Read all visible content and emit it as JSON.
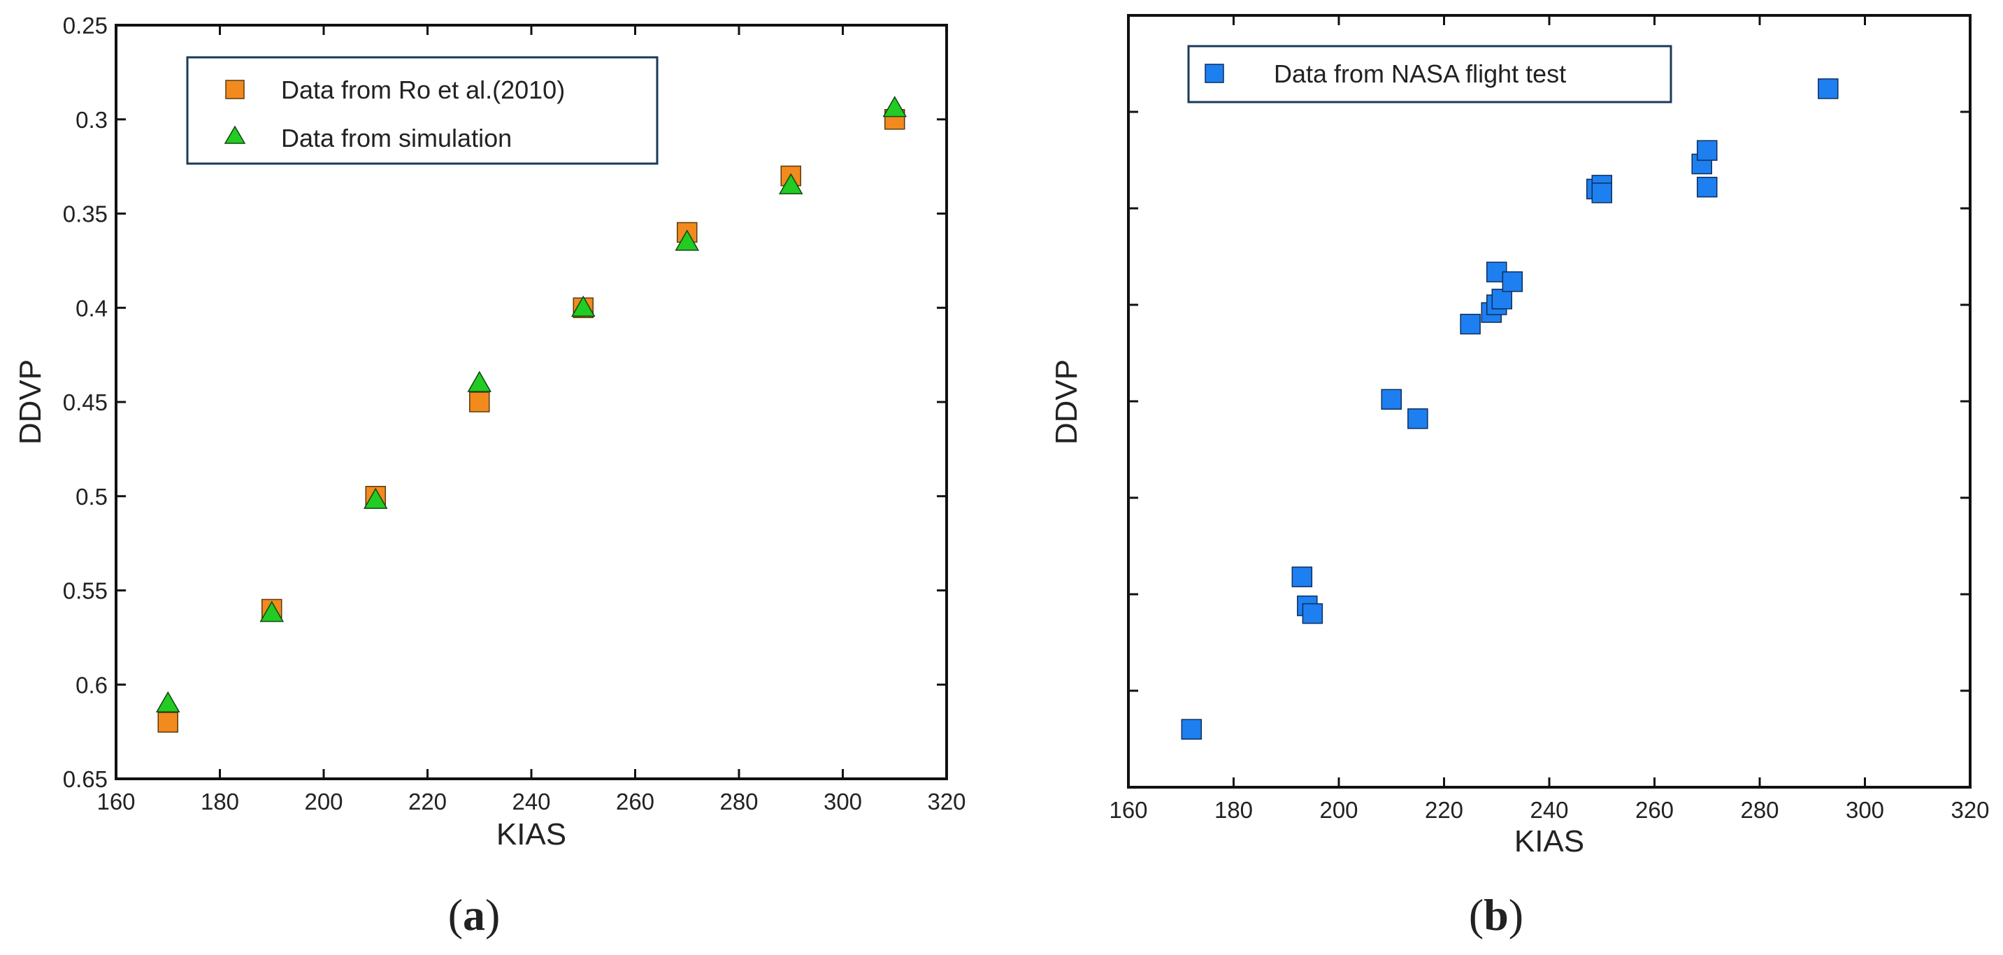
{
  "chart_data": [
    {
      "type": "scatter",
      "panel_label": "(a)",
      "caption_open": "(",
      "caption_letter": "a",
      "caption_close": ")",
      "title": "",
      "xlabel": "KIAS",
      "ylabel": "DDVP",
      "xlim": [
        160,
        320
      ],
      "ylim": [
        0.25,
        0.65
      ],
      "y_inverted": true,
      "x_ticks": [
        160,
        180,
        200,
        220,
        240,
        260,
        280,
        300,
        320
      ],
      "y_ticks": [
        0.25,
        0.3,
        0.35,
        0.4,
        0.45,
        0.5,
        0.55,
        0.6,
        0.65
      ],
      "x_tick_labels": [
        "160",
        "180",
        "200",
        "220",
        "240",
        "260",
        "280",
        "300",
        "320"
      ],
      "y_tick_labels": [
        "0.25",
        "0.3",
        "0.35",
        "0.4",
        "0.45",
        "0.5",
        "0.55",
        "0.6",
        "0.65"
      ],
      "grid": false,
      "legend_position": "top-left",
      "series": [
        {
          "name": "Data from Ro et al.(2010)",
          "marker": "square",
          "color": "#f28a1d",
          "x": [
            170,
            190,
            210,
            230,
            250,
            270,
            290,
            310
          ],
          "y": [
            0.62,
            0.56,
            0.5,
            0.45,
            0.4,
            0.36,
            0.33,
            0.3
          ]
        },
        {
          "name": "Data from simulation",
          "marker": "triangle",
          "color": "#22cc22",
          "x": [
            170,
            190,
            210,
            230,
            250,
            270,
            290,
            310
          ],
          "y": [
            0.61,
            0.562,
            0.502,
            0.44,
            0.4,
            0.365,
            0.335,
            0.294
          ]
        }
      ]
    },
    {
      "type": "scatter",
      "panel_label": "(b)",
      "caption_open": "(",
      "caption_letter": "b",
      "caption_close": ")",
      "title": "",
      "xlabel": "KIAS",
      "ylabel": "DDVP",
      "xlim": [
        160,
        320
      ],
      "ylim": [
        0.25,
        0.65
      ],
      "y_inverted": true,
      "x_ticks": [
        160,
        180,
        200,
        220,
        240,
        260,
        280,
        300,
        320
      ],
      "y_ticks": [
        0.25,
        0.3,
        0.35,
        0.4,
        0.45,
        0.5,
        0.55,
        0.6,
        0.65
      ],
      "x_tick_labels": [
        "160",
        "180",
        "200",
        "220",
        "240",
        "260",
        "280",
        "300",
        "320"
      ],
      "y_tick_labels": [],
      "grid": false,
      "legend_position": "top-left",
      "series": [
        {
          "name": "Data from NASA flight test",
          "marker": "square",
          "color": "#1e7ff0",
          "x": [
            172,
            193,
            194,
            195,
            210,
            215,
            225,
            229,
            230,
            231,
            230,
            233,
            249,
            250,
            250,
            269,
            270,
            270,
            293
          ],
          "y": [
            0.62,
            0.541,
            0.556,
            0.56,
            0.449,
            0.459,
            0.41,
            0.404,
            0.4,
            0.397,
            0.383,
            0.388,
            0.34,
            0.338,
            0.342,
            0.327,
            0.32,
            0.339,
            0.288
          ]
        }
      ]
    }
  ]
}
